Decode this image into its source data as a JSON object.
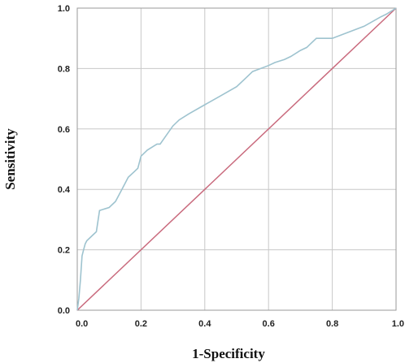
{
  "chart_data": {
    "type": "line",
    "xlabel": "1-Specificity",
    "ylabel": "Sensitivity",
    "xlim": [
      0,
      1
    ],
    "ylim": [
      0,
      1
    ],
    "x_ticks": [
      "0.0",
      "0.2",
      "0.4",
      "0.6",
      "0.8",
      "1.0"
    ],
    "y_ticks": [
      "0.0",
      "0.2",
      "0.4",
      "0.6",
      "0.8",
      "1.0"
    ],
    "grid": true,
    "series": [
      {
        "color": "#9ec3cf",
        "x": [
          0.0,
          0.005,
          0.01,
          0.015,
          0.02,
          0.025,
          0.03,
          0.05,
          0.06,
          0.07,
          0.1,
          0.12,
          0.14,
          0.16,
          0.18,
          0.19,
          0.2,
          0.21,
          0.22,
          0.25,
          0.26,
          0.28,
          0.3,
          0.32,
          0.35,
          0.4,
          0.45,
          0.5,
          0.53,
          0.55,
          0.6,
          0.62,
          0.65,
          0.67,
          0.7,
          0.72,
          0.73,
          0.75,
          0.78,
          0.8,
          0.85,
          0.9,
          0.95,
          0.97,
          1.0
        ],
        "y": [
          0.0,
          0.04,
          0.1,
          0.18,
          0.2,
          0.22,
          0.23,
          0.25,
          0.26,
          0.33,
          0.34,
          0.36,
          0.4,
          0.44,
          0.46,
          0.47,
          0.51,
          0.52,
          0.53,
          0.55,
          0.55,
          0.58,
          0.61,
          0.63,
          0.65,
          0.68,
          0.71,
          0.74,
          0.77,
          0.79,
          0.81,
          0.82,
          0.83,
          0.84,
          0.86,
          0.87,
          0.88,
          0.9,
          0.9,
          0.9,
          0.92,
          0.94,
          0.97,
          0.98,
          1.0
        ]
      },
      {
        "color": "#c96a7d",
        "x": [
          0,
          1
        ],
        "y": [
          0,
          1
        ]
      }
    ]
  }
}
